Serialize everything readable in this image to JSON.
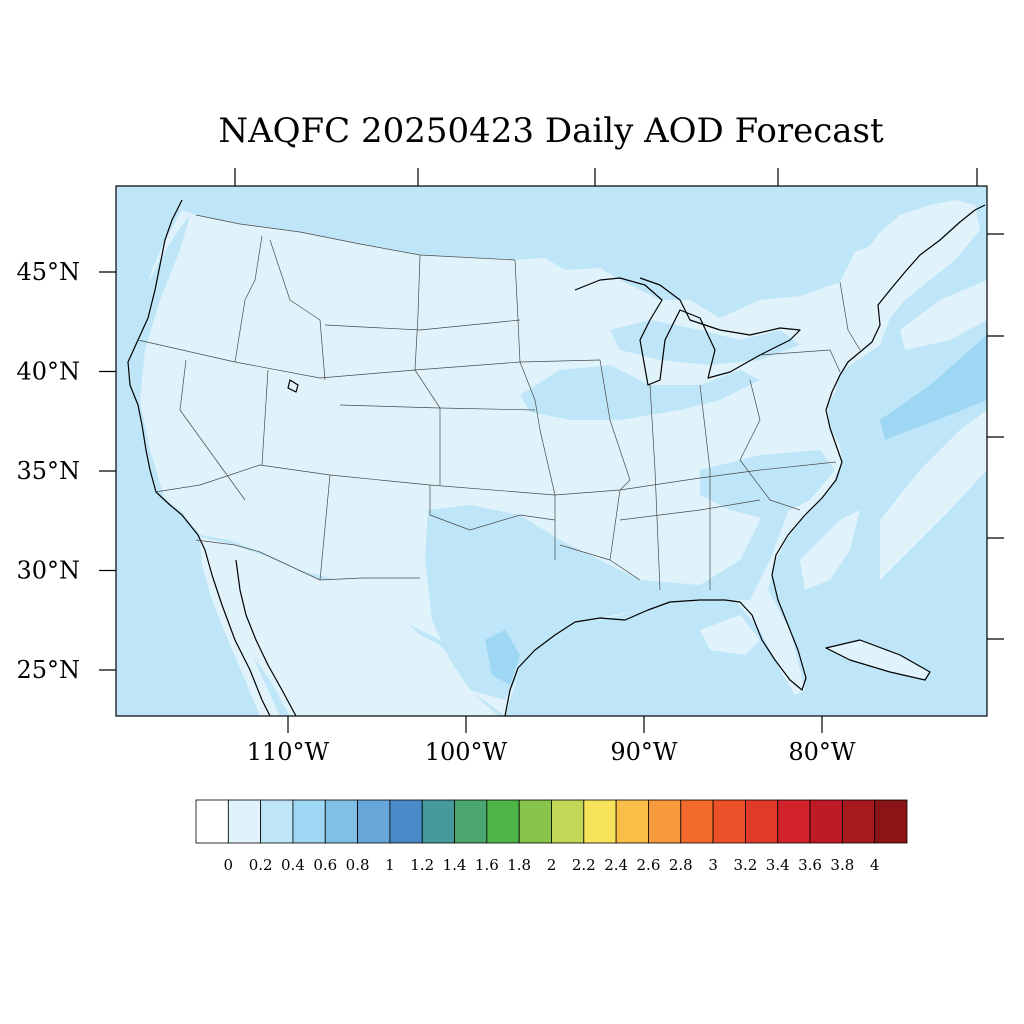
{
  "title": "NAQFC 20250423 Daily AOD Forecast",
  "lat_labels": [
    {
      "value": 45,
      "text": "45°N"
    },
    {
      "value": 40,
      "text": "40°N"
    },
    {
      "value": 35,
      "text": "35°N"
    },
    {
      "value": 30,
      "text": "30°N"
    },
    {
      "value": 25,
      "text": "25°N"
    }
  ],
  "lon_labels": [
    {
      "value": -110,
      "text": "110°W"
    },
    {
      "value": -100,
      "text": "100°W"
    },
    {
      "value": -90,
      "text": "90°W"
    },
    {
      "value": -80,
      "text": "80°W"
    }
  ],
  "colorbar": {
    "labels": [
      "0",
      "0.2",
      "0.4",
      "0.6",
      "0.8",
      "1",
      "1.2",
      "1.4",
      "1.6",
      "1.8",
      "2",
      "2.2",
      "2.4",
      "2.6",
      "2.8",
      "3",
      "3.2",
      "3.4",
      "3.6",
      "3.8",
      "4"
    ],
    "colors": [
      "#ffffff",
      "#e0f3fb",
      "#bee6f8",
      "#9ed7f3",
      "#80c0e6",
      "#66a6d9",
      "#4a8ac8",
      "#459a9c",
      "#4aa66e",
      "#4db548",
      "#86c54a",
      "#c4d655",
      "#f7e45a",
      "#f8be48",
      "#f79a3e",
      "#f36b2c",
      "#ec5129",
      "#e13a28",
      "#d2232a",
      "#be1b26",
      "#a8191e",
      "#8b1516"
    ]
  }
}
